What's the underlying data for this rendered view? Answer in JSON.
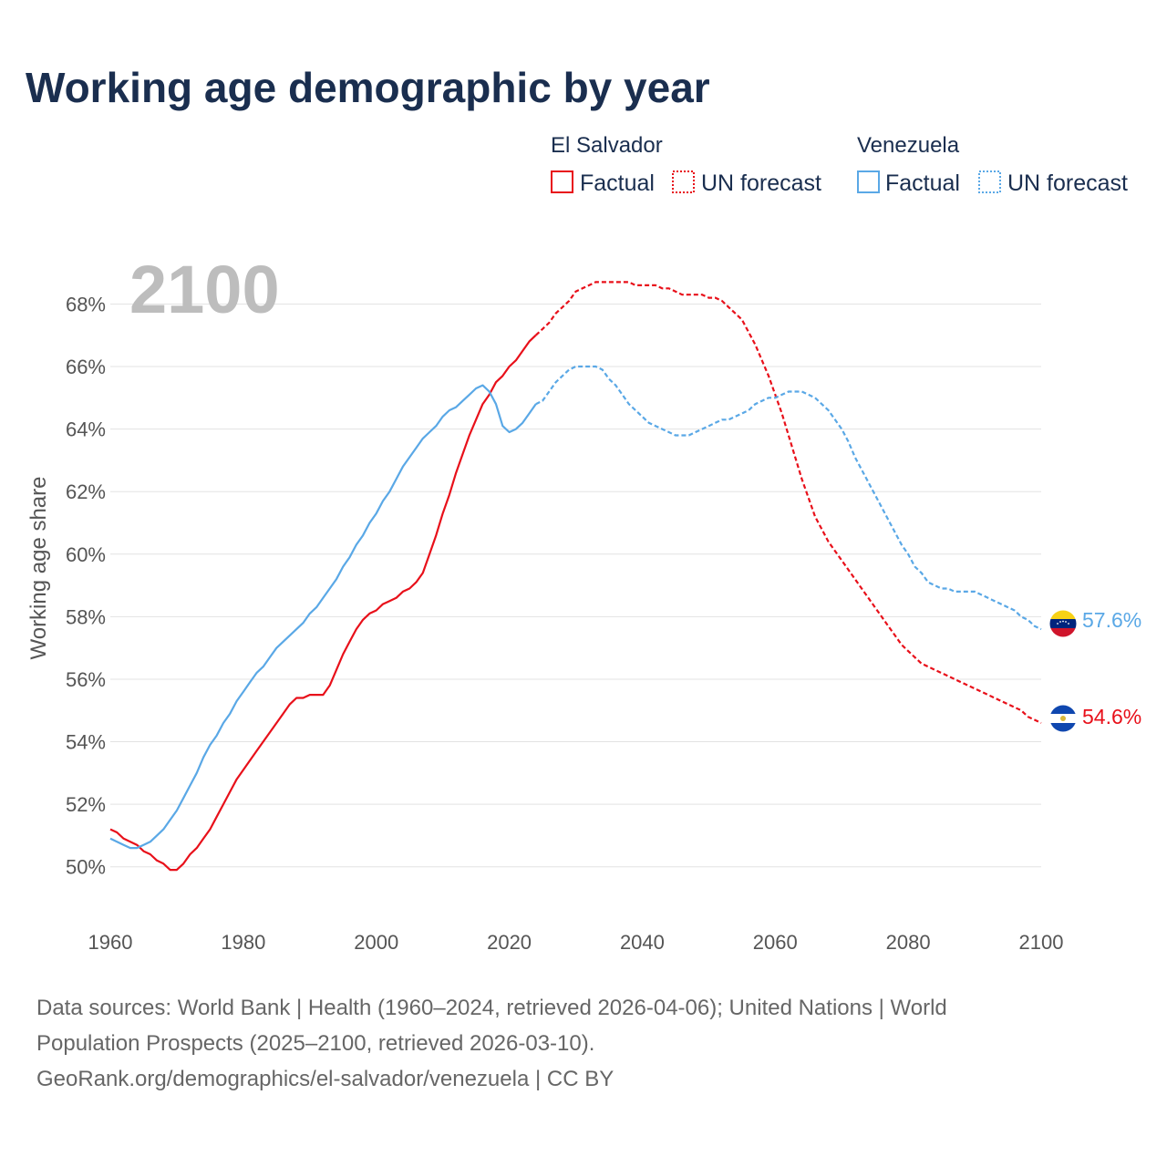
{
  "title": "Working age demographic by year",
  "year_label": "2100",
  "legend": {
    "groups": [
      {
        "name": "El Salvador",
        "color": "#e8101a",
        "factual": "Factual",
        "forecast": "UN forecast"
      },
      {
        "name": "Venezuela",
        "color": "#5aa8e6",
        "factual": "Factual",
        "forecast": "UN forecast"
      }
    ]
  },
  "axis": {
    "y_title": "Working age share"
  },
  "end_labels": {
    "venezuela": "57.6%",
    "el_salvador": "54.6%"
  },
  "source": {
    "line1": "Data sources: World Bank | Health (1960–2024, retrieved 2026-04-06); United Nations | World",
    "line2": "Population Prospects (2025–2100, retrieved 2026-03-10).",
    "line3": "GeoRank.org/demographics/el-salvador/venezuela | CC BY"
  },
  "chart_data": {
    "type": "line",
    "title": "Working age demographic by year",
    "xlabel": "",
    "ylabel": "Working age share",
    "xlim": [
      1960,
      2100
    ],
    "ylim": [
      49,
      69.5
    ],
    "x_ticks": [
      1960,
      1980,
      2000,
      2020,
      2040,
      2060,
      2080,
      2100
    ],
    "x_tick_labels": [
      "1960",
      "1980",
      "2000",
      "2020",
      "2040",
      "2060",
      "2080",
      "2100"
    ],
    "y_ticks": [
      50,
      52,
      54,
      56,
      58,
      60,
      62,
      64,
      66,
      68
    ],
    "y_tick_labels": [
      "50%",
      "52%",
      "54%",
      "56%",
      "58%",
      "60%",
      "62%",
      "64%",
      "66%",
      "68%"
    ],
    "factual_end_year": 2024,
    "series": [
      {
        "name": "El Salvador",
        "color": "#e8101a",
        "points": [
          [
            1960,
            51.2
          ],
          [
            1961,
            51.1
          ],
          [
            1962,
            50.9
          ],
          [
            1963,
            50.8
          ],
          [
            1964,
            50.7
          ],
          [
            1965,
            50.5
          ],
          [
            1966,
            50.4
          ],
          [
            1967,
            50.2
          ],
          [
            1968,
            50.1
          ],
          [
            1969,
            49.9
          ],
          [
            1970,
            49.9
          ],
          [
            1971,
            50.1
          ],
          [
            1972,
            50.4
          ],
          [
            1973,
            50.6
          ],
          [
            1974,
            50.9
          ],
          [
            1975,
            51.2
          ],
          [
            1976,
            51.6
          ],
          [
            1977,
            52.0
          ],
          [
            1978,
            52.4
          ],
          [
            1979,
            52.8
          ],
          [
            1980,
            53.1
          ],
          [
            1981,
            53.4
          ],
          [
            1982,
            53.7
          ],
          [
            1983,
            54.0
          ],
          [
            1984,
            54.3
          ],
          [
            1985,
            54.6
          ],
          [
            1986,
            54.9
          ],
          [
            1987,
            55.2
          ],
          [
            1988,
            55.4
          ],
          [
            1989,
            55.4
          ],
          [
            1990,
            55.5
          ],
          [
            1991,
            55.5
          ],
          [
            1992,
            55.5
          ],
          [
            1993,
            55.8
          ],
          [
            1994,
            56.3
          ],
          [
            1995,
            56.8
          ],
          [
            1996,
            57.2
          ],
          [
            1997,
            57.6
          ],
          [
            1998,
            57.9
          ],
          [
            1999,
            58.1
          ],
          [
            2000,
            58.2
          ],
          [
            2001,
            58.4
          ],
          [
            2002,
            58.5
          ],
          [
            2003,
            58.6
          ],
          [
            2004,
            58.8
          ],
          [
            2005,
            58.9
          ],
          [
            2006,
            59.1
          ],
          [
            2007,
            59.4
          ],
          [
            2008,
            60.0
          ],
          [
            2009,
            60.6
          ],
          [
            2010,
            61.3
          ],
          [
            2011,
            61.9
          ],
          [
            2012,
            62.6
          ],
          [
            2013,
            63.2
          ],
          [
            2014,
            63.8
          ],
          [
            2015,
            64.3
          ],
          [
            2016,
            64.8
          ],
          [
            2017,
            65.1
          ],
          [
            2018,
            65.5
          ],
          [
            2019,
            65.7
          ],
          [
            2020,
            66.0
          ],
          [
            2021,
            66.2
          ],
          [
            2022,
            66.5
          ],
          [
            2023,
            66.8
          ],
          [
            2024,
            67.0
          ],
          [
            2025,
            67.2
          ],
          [
            2026,
            67.4
          ],
          [
            2027,
            67.7
          ],
          [
            2028,
            67.9
          ],
          [
            2029,
            68.1
          ],
          [
            2030,
            68.4
          ],
          [
            2031,
            68.5
          ],
          [
            2032,
            68.6
          ],
          [
            2033,
            68.7
          ],
          [
            2034,
            68.7
          ],
          [
            2035,
            68.7
          ],
          [
            2036,
            68.7
          ],
          [
            2037,
            68.7
          ],
          [
            2038,
            68.7
          ],
          [
            2039,
            68.6
          ],
          [
            2040,
            68.6
          ],
          [
            2041,
            68.6
          ],
          [
            2042,
            68.6
          ],
          [
            2043,
            68.5
          ],
          [
            2044,
            68.5
          ],
          [
            2045,
            68.4
          ],
          [
            2046,
            68.3
          ],
          [
            2047,
            68.3
          ],
          [
            2048,
            68.3
          ],
          [
            2049,
            68.3
          ],
          [
            2050,
            68.2
          ],
          [
            2051,
            68.2
          ],
          [
            2052,
            68.1
          ],
          [
            2053,
            67.9
          ],
          [
            2054,
            67.7
          ],
          [
            2055,
            67.5
          ],
          [
            2056,
            67.1
          ],
          [
            2057,
            66.7
          ],
          [
            2058,
            66.2
          ],
          [
            2059,
            65.7
          ],
          [
            2060,
            65.1
          ],
          [
            2061,
            64.5
          ],
          [
            2062,
            63.8
          ],
          [
            2063,
            63.1
          ],
          [
            2064,
            62.4
          ],
          [
            2065,
            61.8
          ],
          [
            2066,
            61.2
          ],
          [
            2067,
            60.8
          ],
          [
            2068,
            60.4
          ],
          [
            2069,
            60.1
          ],
          [
            2070,
            59.8
          ],
          [
            2071,
            59.5
          ],
          [
            2072,
            59.2
          ],
          [
            2073,
            58.9
          ],
          [
            2074,
            58.6
          ],
          [
            2075,
            58.3
          ],
          [
            2076,
            58.0
          ],
          [
            2077,
            57.7
          ],
          [
            2078,
            57.4
          ],
          [
            2079,
            57.1
          ],
          [
            2080,
            56.9
          ],
          [
            2081,
            56.7
          ],
          [
            2082,
            56.5
          ],
          [
            2083,
            56.4
          ],
          [
            2084,
            56.3
          ],
          [
            2085,
            56.2
          ],
          [
            2086,
            56.1
          ],
          [
            2087,
            56.0
          ],
          [
            2088,
            55.9
          ],
          [
            2089,
            55.8
          ],
          [
            2090,
            55.7
          ],
          [
            2091,
            55.6
          ],
          [
            2092,
            55.5
          ],
          [
            2093,
            55.4
          ],
          [
            2094,
            55.3
          ],
          [
            2095,
            55.2
          ],
          [
            2096,
            55.1
          ],
          [
            2097,
            55.0
          ],
          [
            2098,
            54.8
          ],
          [
            2099,
            54.7
          ],
          [
            2100,
            54.6
          ]
        ]
      },
      {
        "name": "Venezuela",
        "color": "#5aa8e6",
        "points": [
          [
            1960,
            50.9
          ],
          [
            1961,
            50.8
          ],
          [
            1962,
            50.7
          ],
          [
            1963,
            50.6
          ],
          [
            1964,
            50.6
          ],
          [
            1965,
            50.7
          ],
          [
            1966,
            50.8
          ],
          [
            1967,
            51.0
          ],
          [
            1968,
            51.2
          ],
          [
            1969,
            51.5
          ],
          [
            1970,
            51.8
          ],
          [
            1971,
            52.2
          ],
          [
            1972,
            52.6
          ],
          [
            1973,
            53.0
          ],
          [
            1974,
            53.5
          ],
          [
            1975,
            53.9
          ],
          [
            1976,
            54.2
          ],
          [
            1977,
            54.6
          ],
          [
            1978,
            54.9
          ],
          [
            1979,
            55.3
          ],
          [
            1980,
            55.6
          ],
          [
            1981,
            55.9
          ],
          [
            1982,
            56.2
          ],
          [
            1983,
            56.4
          ],
          [
            1984,
            56.7
          ],
          [
            1985,
            57.0
          ],
          [
            1986,
            57.2
          ],
          [
            1987,
            57.4
          ],
          [
            1988,
            57.6
          ],
          [
            1989,
            57.8
          ],
          [
            1990,
            58.1
          ],
          [
            1991,
            58.3
          ],
          [
            1992,
            58.6
          ],
          [
            1993,
            58.9
          ],
          [
            1994,
            59.2
          ],
          [
            1995,
            59.6
          ],
          [
            1996,
            59.9
          ],
          [
            1997,
            60.3
          ],
          [
            1998,
            60.6
          ],
          [
            1999,
            61.0
          ],
          [
            2000,
            61.3
          ],
          [
            2001,
            61.7
          ],
          [
            2002,
            62.0
          ],
          [
            2003,
            62.4
          ],
          [
            2004,
            62.8
          ],
          [
            2005,
            63.1
          ],
          [
            2006,
            63.4
          ],
          [
            2007,
            63.7
          ],
          [
            2008,
            63.9
          ],
          [
            2009,
            64.1
          ],
          [
            2010,
            64.4
          ],
          [
            2011,
            64.6
          ],
          [
            2012,
            64.7
          ],
          [
            2013,
            64.9
          ],
          [
            2014,
            65.1
          ],
          [
            2015,
            65.3
          ],
          [
            2016,
            65.4
          ],
          [
            2017,
            65.2
          ],
          [
            2018,
            64.8
          ],
          [
            2019,
            64.1
          ],
          [
            2020,
            63.9
          ],
          [
            2021,
            64.0
          ],
          [
            2022,
            64.2
          ],
          [
            2023,
            64.5
          ],
          [
            2024,
            64.8
          ],
          [
            2025,
            64.9
          ],
          [
            2026,
            65.2
          ],
          [
            2027,
            65.5
          ],
          [
            2028,
            65.7
          ],
          [
            2029,
            65.9
          ],
          [
            2030,
            66.0
          ],
          [
            2031,
            66.0
          ],
          [
            2032,
            66.0
          ],
          [
            2033,
            66.0
          ],
          [
            2034,
            65.9
          ],
          [
            2035,
            65.6
          ],
          [
            2036,
            65.4
          ],
          [
            2037,
            65.1
          ],
          [
            2038,
            64.8
          ],
          [
            2039,
            64.6
          ],
          [
            2040,
            64.4
          ],
          [
            2041,
            64.2
          ],
          [
            2042,
            64.1
          ],
          [
            2043,
            64.0
          ],
          [
            2044,
            63.9
          ],
          [
            2045,
            63.8
          ],
          [
            2046,
            63.8
          ],
          [
            2047,
            63.8
          ],
          [
            2048,
            63.9
          ],
          [
            2049,
            64.0
          ],
          [
            2050,
            64.1
          ],
          [
            2051,
            64.2
          ],
          [
            2052,
            64.3
          ],
          [
            2053,
            64.3
          ],
          [
            2054,
            64.4
          ],
          [
            2055,
            64.5
          ],
          [
            2056,
            64.6
          ],
          [
            2057,
            64.8
          ],
          [
            2058,
            64.9
          ],
          [
            2059,
            65.0
          ],
          [
            2060,
            65.0
          ],
          [
            2061,
            65.1
          ],
          [
            2062,
            65.2
          ],
          [
            2063,
            65.2
          ],
          [
            2064,
            65.2
          ],
          [
            2065,
            65.1
          ],
          [
            2066,
            65.0
          ],
          [
            2067,
            64.8
          ],
          [
            2068,
            64.6
          ],
          [
            2069,
            64.3
          ],
          [
            2070,
            64.0
          ],
          [
            2071,
            63.6
          ],
          [
            2072,
            63.1
          ],
          [
            2073,
            62.7
          ],
          [
            2074,
            62.3
          ],
          [
            2075,
            61.9
          ],
          [
            2076,
            61.5
          ],
          [
            2077,
            61.1
          ],
          [
            2078,
            60.7
          ],
          [
            2079,
            60.3
          ],
          [
            2080,
            60.0
          ],
          [
            2081,
            59.6
          ],
          [
            2082,
            59.4
          ],
          [
            2083,
            59.1
          ],
          [
            2084,
            59.0
          ],
          [
            2085,
            58.9
          ],
          [
            2086,
            58.9
          ],
          [
            2087,
            58.8
          ],
          [
            2088,
            58.8
          ],
          [
            2089,
            58.8
          ],
          [
            2090,
            58.8
          ],
          [
            2091,
            58.7
          ],
          [
            2092,
            58.6
          ],
          [
            2093,
            58.5
          ],
          [
            2094,
            58.4
          ],
          [
            2095,
            58.3
          ],
          [
            2096,
            58.2
          ],
          [
            2097,
            58.0
          ],
          [
            2098,
            57.9
          ],
          [
            2099,
            57.7
          ],
          [
            2100,
            57.6
          ]
        ]
      }
    ]
  }
}
